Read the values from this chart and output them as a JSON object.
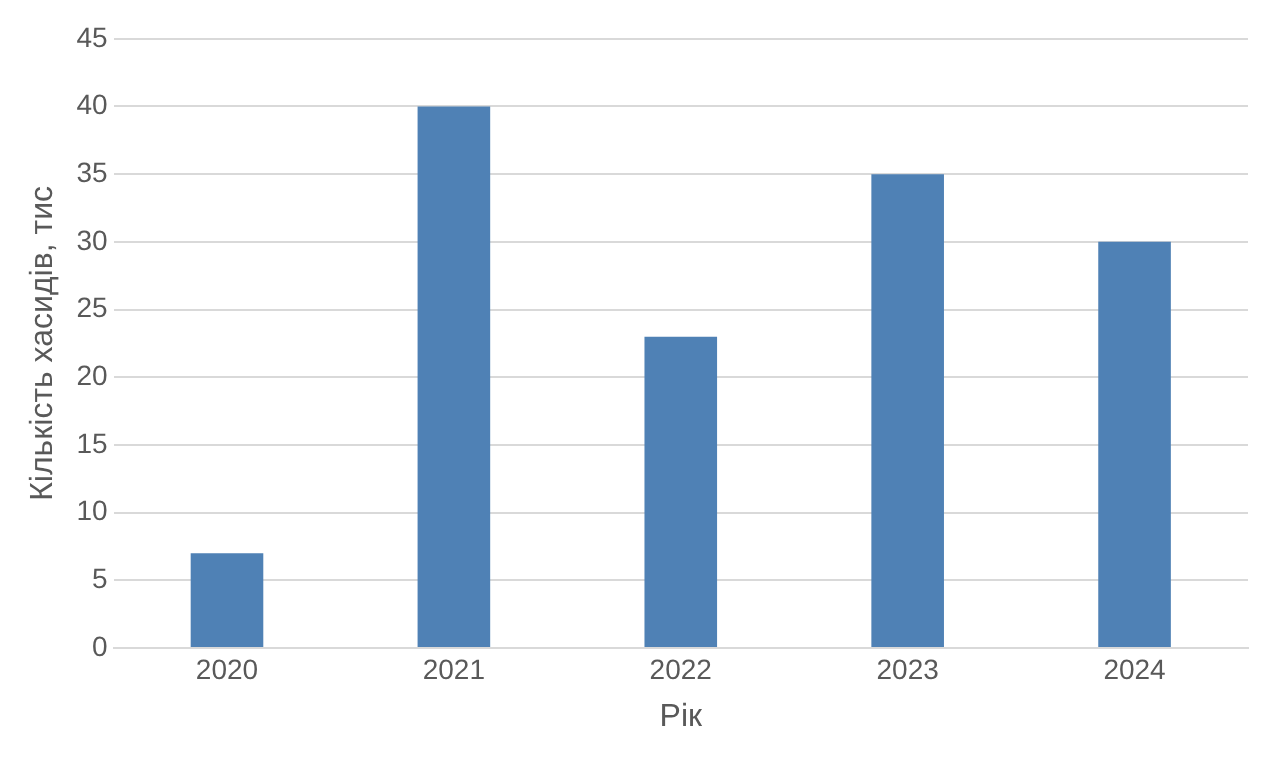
{
  "chart_data": {
    "type": "bar",
    "xlabel": "Рік",
    "ylabel": "Кількість хасидів, тис",
    "categories": [
      "2020",
      "2021",
      "2022",
      "2023",
      "2024"
    ],
    "values": [
      7,
      40,
      23,
      35,
      30
    ],
    "color": "#4f81b5",
    "ylim": [
      0,
      45
    ],
    "yticks": [
      0,
      5,
      10,
      15,
      20,
      25,
      30,
      35,
      40,
      45
    ],
    "grid": "y",
    "legend": false
  }
}
